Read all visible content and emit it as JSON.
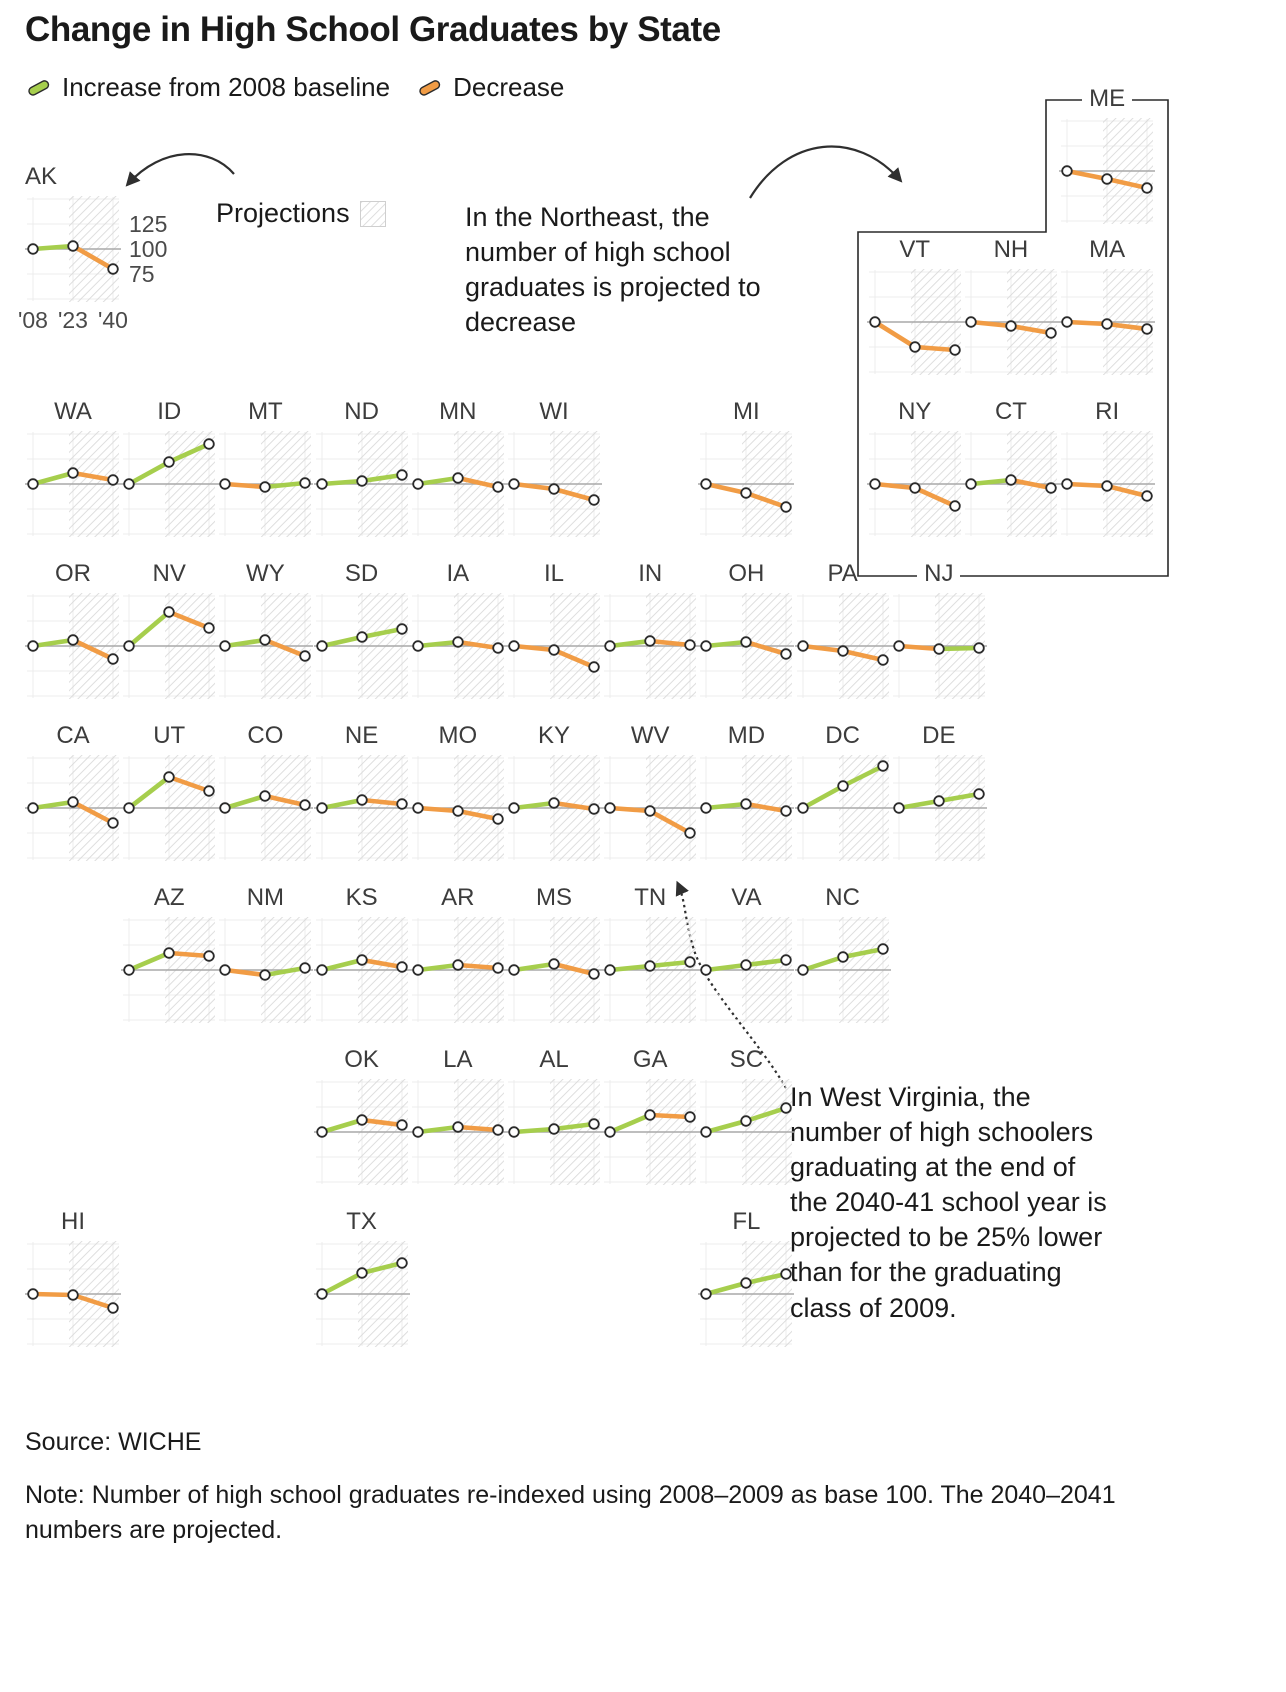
{
  "title": "Change in High School Graduates by State",
  "legend": {
    "increase_label": "Increase from 2008 baseline",
    "decrease_label": "Decrease"
  },
  "colors": {
    "increase": "#a6ce4d",
    "decrease": "#f19c45",
    "baseline": "#a9a9a9",
    "grid": "#ececec",
    "hatch": "#d8d8d8",
    "point_stroke": "#2b2b2b",
    "text": "#1a1a1a"
  },
  "annotations": {
    "projections_label": "Projections",
    "northeast": "In the Northeast, the\nnumber of high school\ngraduates is projected to\ndecrease",
    "west_virginia": "In West Virginia, the\nnumber of high schoolers\ngraduating at the end of\nthe 2040-41 school year is\nprojected to be 25% lower\nthan for the graduating\nclass of 2009."
  },
  "axis": {
    "y_ticks": [
      "125",
      "100",
      "75"
    ],
    "x_ticks": [
      "'08",
      "'23",
      "'40"
    ]
  },
  "source": "Source: WICHE",
  "note": "Note: Number of high school graduates re-indexed using 2008–2009 as base 100. The 2040–2041\nnumbers are projected.",
  "chart_data": {
    "type": "line",
    "x": [
      2008,
      2023,
      2040
    ],
    "x_labels": [
      "'08",
      "'23",
      "'40"
    ],
    "baseline": 100,
    "ylim": [
      50,
      150
    ],
    "grid": true,
    "projection_region": [
      2023,
      2040
    ],
    "series": [
      {
        "name": "AK",
        "values": [
          100,
          103,
          80
        ],
        "pos": [
          0,
          -1.45
        ]
      },
      {
        "name": "ME",
        "values": [
          100,
          92,
          83
        ],
        "pos": [
          10.75,
          -1.93
        ]
      },
      {
        "name": "VT",
        "values": [
          100,
          75,
          72
        ],
        "pos": [
          8.75,
          -1
        ]
      },
      {
        "name": "NH",
        "values": [
          100,
          96,
          89
        ],
        "pos": [
          9.75,
          -1
        ]
      },
      {
        "name": "MA",
        "values": [
          100,
          98,
          93
        ],
        "pos": [
          10.75,
          -1
        ]
      },
      {
        "name": "NY",
        "values": [
          100,
          96,
          78
        ],
        "pos": [
          8.75,
          0
        ]
      },
      {
        "name": "CT",
        "values": [
          100,
          104,
          96
        ],
        "pos": [
          9.75,
          0
        ]
      },
      {
        "name": "RI",
        "values": [
          100,
          98,
          88
        ],
        "pos": [
          10.75,
          0
        ]
      },
      {
        "name": "WA",
        "values": [
          100,
          111,
          104
        ],
        "pos": [
          0,
          0
        ]
      },
      {
        "name": "ID",
        "values": [
          100,
          122,
          140
        ],
        "pos": [
          1,
          0
        ]
      },
      {
        "name": "MT",
        "values": [
          100,
          97,
          101
        ],
        "pos": [
          2,
          0
        ]
      },
      {
        "name": "ND",
        "values": [
          100,
          103,
          109
        ],
        "pos": [
          3,
          0
        ]
      },
      {
        "name": "MN",
        "values": [
          100,
          106,
          97
        ],
        "pos": [
          4,
          0
        ]
      },
      {
        "name": "WI",
        "values": [
          100,
          95,
          84
        ],
        "pos": [
          5,
          0
        ]
      },
      {
        "name": "MI",
        "values": [
          100,
          91,
          77
        ],
        "pos": [
          7,
          0
        ]
      },
      {
        "name": "OR",
        "values": [
          100,
          106,
          87
        ],
        "pos": [
          0,
          1
        ]
      },
      {
        "name": "NV",
        "values": [
          100,
          134,
          118
        ],
        "pos": [
          1,
          1
        ]
      },
      {
        "name": "WY",
        "values": [
          100,
          106,
          90
        ],
        "pos": [
          2,
          1
        ]
      },
      {
        "name": "SD",
        "values": [
          100,
          109,
          117
        ],
        "pos": [
          3,
          1
        ]
      },
      {
        "name": "IA",
        "values": [
          100,
          104,
          98
        ],
        "pos": [
          4,
          1
        ]
      },
      {
        "name": "IL",
        "values": [
          100,
          96,
          79
        ],
        "pos": [
          5,
          1
        ]
      },
      {
        "name": "IN",
        "values": [
          100,
          105,
          101
        ],
        "pos": [
          6,
          1
        ]
      },
      {
        "name": "OH",
        "values": [
          100,
          104,
          92
        ],
        "pos": [
          7,
          1
        ]
      },
      {
        "name": "PA",
        "values": [
          100,
          95,
          86
        ],
        "pos": [
          8,
          1
        ]
      },
      {
        "name": "NJ",
        "values": [
          100,
          97,
          98
        ],
        "pos": [
          9,
          1
        ]
      },
      {
        "name": "CA",
        "values": [
          100,
          106,
          85
        ],
        "pos": [
          0,
          2
        ]
      },
      {
        "name": "UT",
        "values": [
          100,
          131,
          117
        ],
        "pos": [
          1,
          2
        ]
      },
      {
        "name": "CO",
        "values": [
          100,
          112,
          103
        ],
        "pos": [
          2,
          2
        ]
      },
      {
        "name": "NE",
        "values": [
          100,
          108,
          104
        ],
        "pos": [
          3,
          2
        ]
      },
      {
        "name": "MO",
        "values": [
          100,
          97,
          89
        ],
        "pos": [
          4,
          2
        ]
      },
      {
        "name": "KY",
        "values": [
          100,
          105,
          99
        ],
        "pos": [
          5,
          2
        ]
      },
      {
        "name": "WV",
        "values": [
          100,
          97,
          75
        ],
        "pos": [
          6,
          2
        ]
      },
      {
        "name": "MD",
        "values": [
          100,
          104,
          97
        ],
        "pos": [
          7,
          2
        ]
      },
      {
        "name": "DC",
        "values": [
          100,
          122,
          142
        ],
        "pos": [
          8,
          2
        ]
      },
      {
        "name": "DE",
        "values": [
          100,
          107,
          114
        ],
        "pos": [
          9,
          2
        ]
      },
      {
        "name": "AZ",
        "values": [
          100,
          117,
          114
        ],
        "pos": [
          1,
          3
        ]
      },
      {
        "name": "NM",
        "values": [
          100,
          95,
          102
        ],
        "pos": [
          2,
          3
        ]
      },
      {
        "name": "KS",
        "values": [
          100,
          110,
          103
        ],
        "pos": [
          3,
          3
        ]
      },
      {
        "name": "AR",
        "values": [
          100,
          105,
          102
        ],
        "pos": [
          4,
          3
        ]
      },
      {
        "name": "MS",
        "values": [
          100,
          106,
          96
        ],
        "pos": [
          5,
          3
        ]
      },
      {
        "name": "TN",
        "values": [
          100,
          104,
          108
        ],
        "pos": [
          6,
          3
        ]
      },
      {
        "name": "VA",
        "values": [
          100,
          105,
          110
        ],
        "pos": [
          7,
          3
        ]
      },
      {
        "name": "NC",
        "values": [
          100,
          113,
          121
        ],
        "pos": [
          8,
          3
        ]
      },
      {
        "name": "OK",
        "values": [
          100,
          112,
          107
        ],
        "pos": [
          3,
          4
        ]
      },
      {
        "name": "LA",
        "values": [
          100,
          105,
          102
        ],
        "pos": [
          4,
          4
        ]
      },
      {
        "name": "AL",
        "values": [
          100,
          103,
          108
        ],
        "pos": [
          5,
          4
        ]
      },
      {
        "name": "GA",
        "values": [
          100,
          117,
          115
        ],
        "pos": [
          6,
          4
        ]
      },
      {
        "name": "SC",
        "values": [
          100,
          111,
          124
        ],
        "pos": [
          7,
          4
        ]
      },
      {
        "name": "HI",
        "values": [
          100,
          99,
          86
        ],
        "pos": [
          0,
          5
        ]
      },
      {
        "name": "TX",
        "values": [
          100,
          121,
          131
        ],
        "pos": [
          3,
          5
        ]
      },
      {
        "name": "FL",
        "values": [
          100,
          111,
          120
        ],
        "pos": [
          7,
          5
        ]
      }
    ]
  }
}
